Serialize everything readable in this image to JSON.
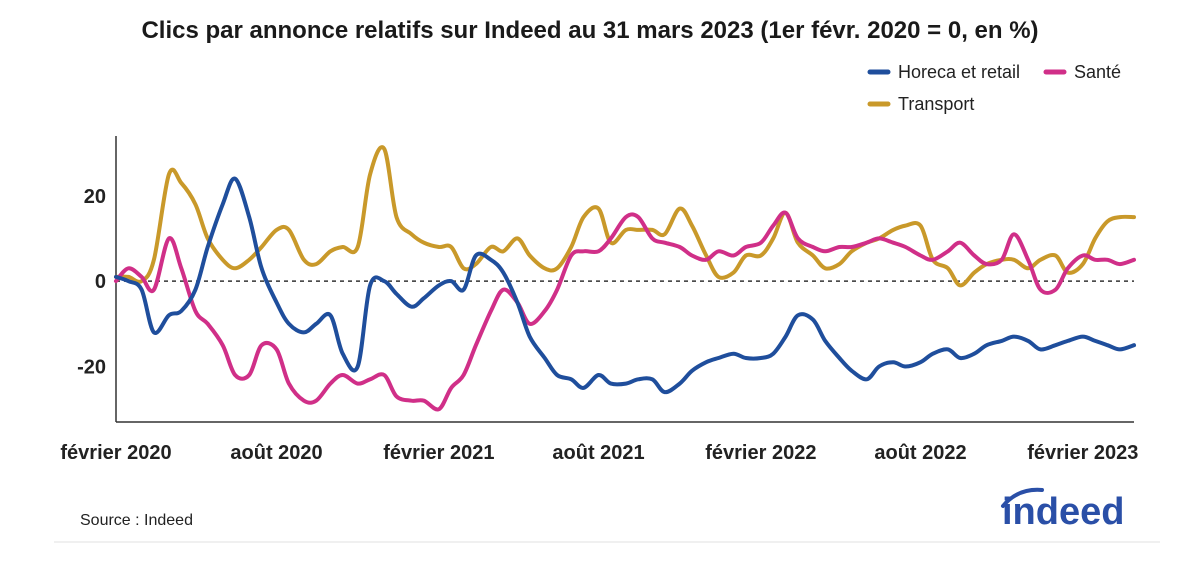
{
  "chart_data": {
    "type": "line",
    "title": "Clics par annonce relatifs sur Indeed au 31 mars 2023 (1er févr. 2020 = 0, en %)",
    "xlabel": "",
    "ylabel": "",
    "x_ticks": [
      "février 2020",
      "août 2020",
      "février 2021",
      "août 2021",
      "février 2022",
      "août 2022",
      "février 2023"
    ],
    "y_ticks": [
      20,
      0,
      -20
    ],
    "xlim": [
      "2020-02-01",
      "2023-03-31"
    ],
    "ylim": [
      -33,
      34
    ],
    "reference_line": 0,
    "legend_position": "top-right",
    "series": [
      {
        "name": "Horeca et retail",
        "color": "#1f4e9c",
        "x": [
          "2020-02-01",
          "2020-02-15",
          "2020-03-01",
          "2020-03-15",
          "2020-04-01",
          "2020-04-15",
          "2020-05-01",
          "2020-05-15",
          "2020-06-01",
          "2020-06-15",
          "2020-07-01",
          "2020-07-15",
          "2020-08-01",
          "2020-08-15",
          "2020-09-01",
          "2020-09-15",
          "2020-10-01",
          "2020-10-15",
          "2020-11-01",
          "2020-11-15",
          "2020-12-01",
          "2020-12-15",
          "2021-01-01",
          "2021-01-15",
          "2021-02-01",
          "2021-02-15",
          "2021-03-01",
          "2021-03-15",
          "2021-04-01",
          "2021-04-15",
          "2021-05-01",
          "2021-05-15",
          "2021-06-01",
          "2021-06-15",
          "2021-07-01",
          "2021-07-15",
          "2021-08-01",
          "2021-08-15",
          "2021-09-01",
          "2021-09-15",
          "2021-10-01",
          "2021-10-15",
          "2021-11-01",
          "2021-11-15",
          "2021-12-01",
          "2021-12-15",
          "2022-01-01",
          "2022-01-15",
          "2022-02-01",
          "2022-02-15",
          "2022-03-01",
          "2022-03-15",
          "2022-04-01",
          "2022-04-15",
          "2022-05-01",
          "2022-05-15",
          "2022-06-01",
          "2022-06-15",
          "2022-07-01",
          "2022-07-15",
          "2022-08-01",
          "2022-08-15",
          "2022-09-01",
          "2022-09-15",
          "2022-10-01",
          "2022-10-15",
          "2022-11-01",
          "2022-11-15",
          "2022-12-01",
          "2022-12-15",
          "2023-01-01",
          "2023-01-15",
          "2023-02-01",
          "2023-02-15",
          "2023-03-01",
          "2023-03-15",
          "2023-03-31"
        ],
        "values": [
          1,
          0,
          -2,
          -12,
          -8,
          -7,
          -2,
          8,
          18,
          24,
          15,
          3,
          -5,
          -10,
          -12,
          -10,
          -8,
          -17,
          -20,
          -1,
          0,
          -3,
          -6,
          -4,
          -1,
          0,
          -2,
          6,
          5,
          2,
          -5,
          -13,
          -18,
          -22,
          -23,
          -25,
          -22,
          -24,
          -24,
          -23,
          -23,
          -26,
          -24,
          -21,
          -19,
          -18,
          -17,
          -18,
          -18,
          -17,
          -13,
          -8,
          -9,
          -14,
          -18,
          -21,
          -23,
          -20,
          -19,
          -20,
          -19,
          -17,
          -16,
          -18,
          -17,
          -15,
          -14,
          -13,
          -14,
          -16,
          -15,
          -14,
          -13,
          -14,
          -15,
          -16,
          -15
        ]
      },
      {
        "name": "Santé",
        "color": "#d02f88",
        "x": [
          "2020-02-01",
          "2020-02-15",
          "2020-03-01",
          "2020-03-15",
          "2020-04-01",
          "2020-04-15",
          "2020-05-01",
          "2020-05-15",
          "2020-06-01",
          "2020-06-15",
          "2020-07-01",
          "2020-07-15",
          "2020-08-01",
          "2020-08-15",
          "2020-09-01",
          "2020-09-15",
          "2020-10-01",
          "2020-10-15",
          "2020-11-01",
          "2020-11-15",
          "2020-12-01",
          "2020-12-15",
          "2021-01-01",
          "2021-01-15",
          "2021-02-01",
          "2021-02-15",
          "2021-03-01",
          "2021-03-15",
          "2021-04-01",
          "2021-04-15",
          "2021-05-01",
          "2021-05-15",
          "2021-06-01",
          "2021-06-15",
          "2021-07-01",
          "2021-07-15",
          "2021-08-01",
          "2021-08-15",
          "2021-09-01",
          "2021-09-15",
          "2021-10-01",
          "2021-10-15",
          "2021-11-01",
          "2021-11-15",
          "2021-12-01",
          "2021-12-15",
          "2022-01-01",
          "2022-01-15",
          "2022-02-01",
          "2022-02-15",
          "2022-03-01",
          "2022-03-15",
          "2022-04-01",
          "2022-04-15",
          "2022-05-01",
          "2022-05-15",
          "2022-06-01",
          "2022-06-15",
          "2022-07-01",
          "2022-07-15",
          "2022-08-01",
          "2022-08-15",
          "2022-09-01",
          "2022-09-15",
          "2022-10-01",
          "2022-10-15",
          "2022-11-01",
          "2022-11-15",
          "2022-12-01",
          "2022-12-15",
          "2023-01-01",
          "2023-01-15",
          "2023-02-01",
          "2023-02-15",
          "2023-03-01",
          "2023-03-15",
          "2023-03-31"
        ],
        "values": [
          0,
          3,
          1,
          -2,
          10,
          3,
          -7,
          -10,
          -15,
          -22,
          -22,
          -15,
          -16,
          -24,
          -28,
          -28,
          -24,
          -22,
          -24,
          -23,
          -22,
          -27,
          -28,
          -28,
          -30,
          -25,
          -22,
          -15,
          -7,
          -2,
          -5,
          -10,
          -7,
          -2,
          6,
          7,
          7,
          10,
          15,
          15,
          10,
          9,
          8,
          6,
          5,
          7,
          6,
          8,
          9,
          13,
          16,
          10,
          8,
          7,
          8,
          8,
          9,
          10,
          9,
          8,
          6,
          5,
          7,
          9,
          6,
          4,
          5,
          11,
          5,
          -2,
          -2,
          3,
          6,
          5,
          5,
          4,
          5
        ]
      },
      {
        "name": "Transport",
        "color": "#c9992a",
        "x": [
          "2020-02-01",
          "2020-02-15",
          "2020-03-01",
          "2020-03-15",
          "2020-04-01",
          "2020-04-15",
          "2020-05-01",
          "2020-05-15",
          "2020-06-01",
          "2020-06-15",
          "2020-07-01",
          "2020-07-15",
          "2020-08-01",
          "2020-08-15",
          "2020-09-01",
          "2020-09-15",
          "2020-10-01",
          "2020-10-15",
          "2020-11-01",
          "2020-11-15",
          "2020-12-01",
          "2020-12-15",
          "2021-01-01",
          "2021-01-15",
          "2021-02-01",
          "2021-02-15",
          "2021-03-01",
          "2021-03-15",
          "2021-04-01",
          "2021-04-15",
          "2021-05-01",
          "2021-05-15",
          "2021-06-01",
          "2021-06-15",
          "2021-07-01",
          "2021-07-15",
          "2021-08-01",
          "2021-08-15",
          "2021-09-01",
          "2021-09-15",
          "2021-10-01",
          "2021-10-15",
          "2021-11-01",
          "2021-11-15",
          "2021-12-01",
          "2021-12-15",
          "2022-01-01",
          "2022-01-15",
          "2022-02-01",
          "2022-02-15",
          "2022-03-01",
          "2022-03-15",
          "2022-04-01",
          "2022-04-15",
          "2022-05-01",
          "2022-05-15",
          "2022-06-01",
          "2022-06-15",
          "2022-07-01",
          "2022-07-15",
          "2022-08-01",
          "2022-08-15",
          "2022-09-01",
          "2022-09-15",
          "2022-10-01",
          "2022-10-15",
          "2022-11-01",
          "2022-11-15",
          "2022-12-01",
          "2022-12-15",
          "2023-01-01",
          "2023-01-15",
          "2023-02-01",
          "2023-02-15",
          "2023-03-01",
          "2023-03-15",
          "2023-03-31"
        ],
        "values": [
          1,
          1,
          0,
          5,
          25,
          23,
          18,
          10,
          5,
          3,
          5,
          8,
          12,
          12,
          5,
          4,
          7,
          8,
          8,
          25,
          31,
          15,
          11,
          9,
          8,
          8,
          3,
          4,
          8,
          7,
          10,
          6,
          3,
          3,
          8,
          15,
          17,
          9,
          12,
          12,
          12,
          11,
          17,
          13,
          6,
          1,
          2,
          6,
          6,
          10,
          16,
          9,
          6,
          3,
          4,
          7,
          9,
          10,
          12,
          13,
          13,
          5,
          3,
          -1,
          2,
          4,
          5,
          5,
          3,
          5,
          6,
          2,
          4,
          10,
          14,
          15,
          15
        ]
      }
    ]
  },
  "source_text": "Source : Indeed",
  "logo_text": "indeed"
}
